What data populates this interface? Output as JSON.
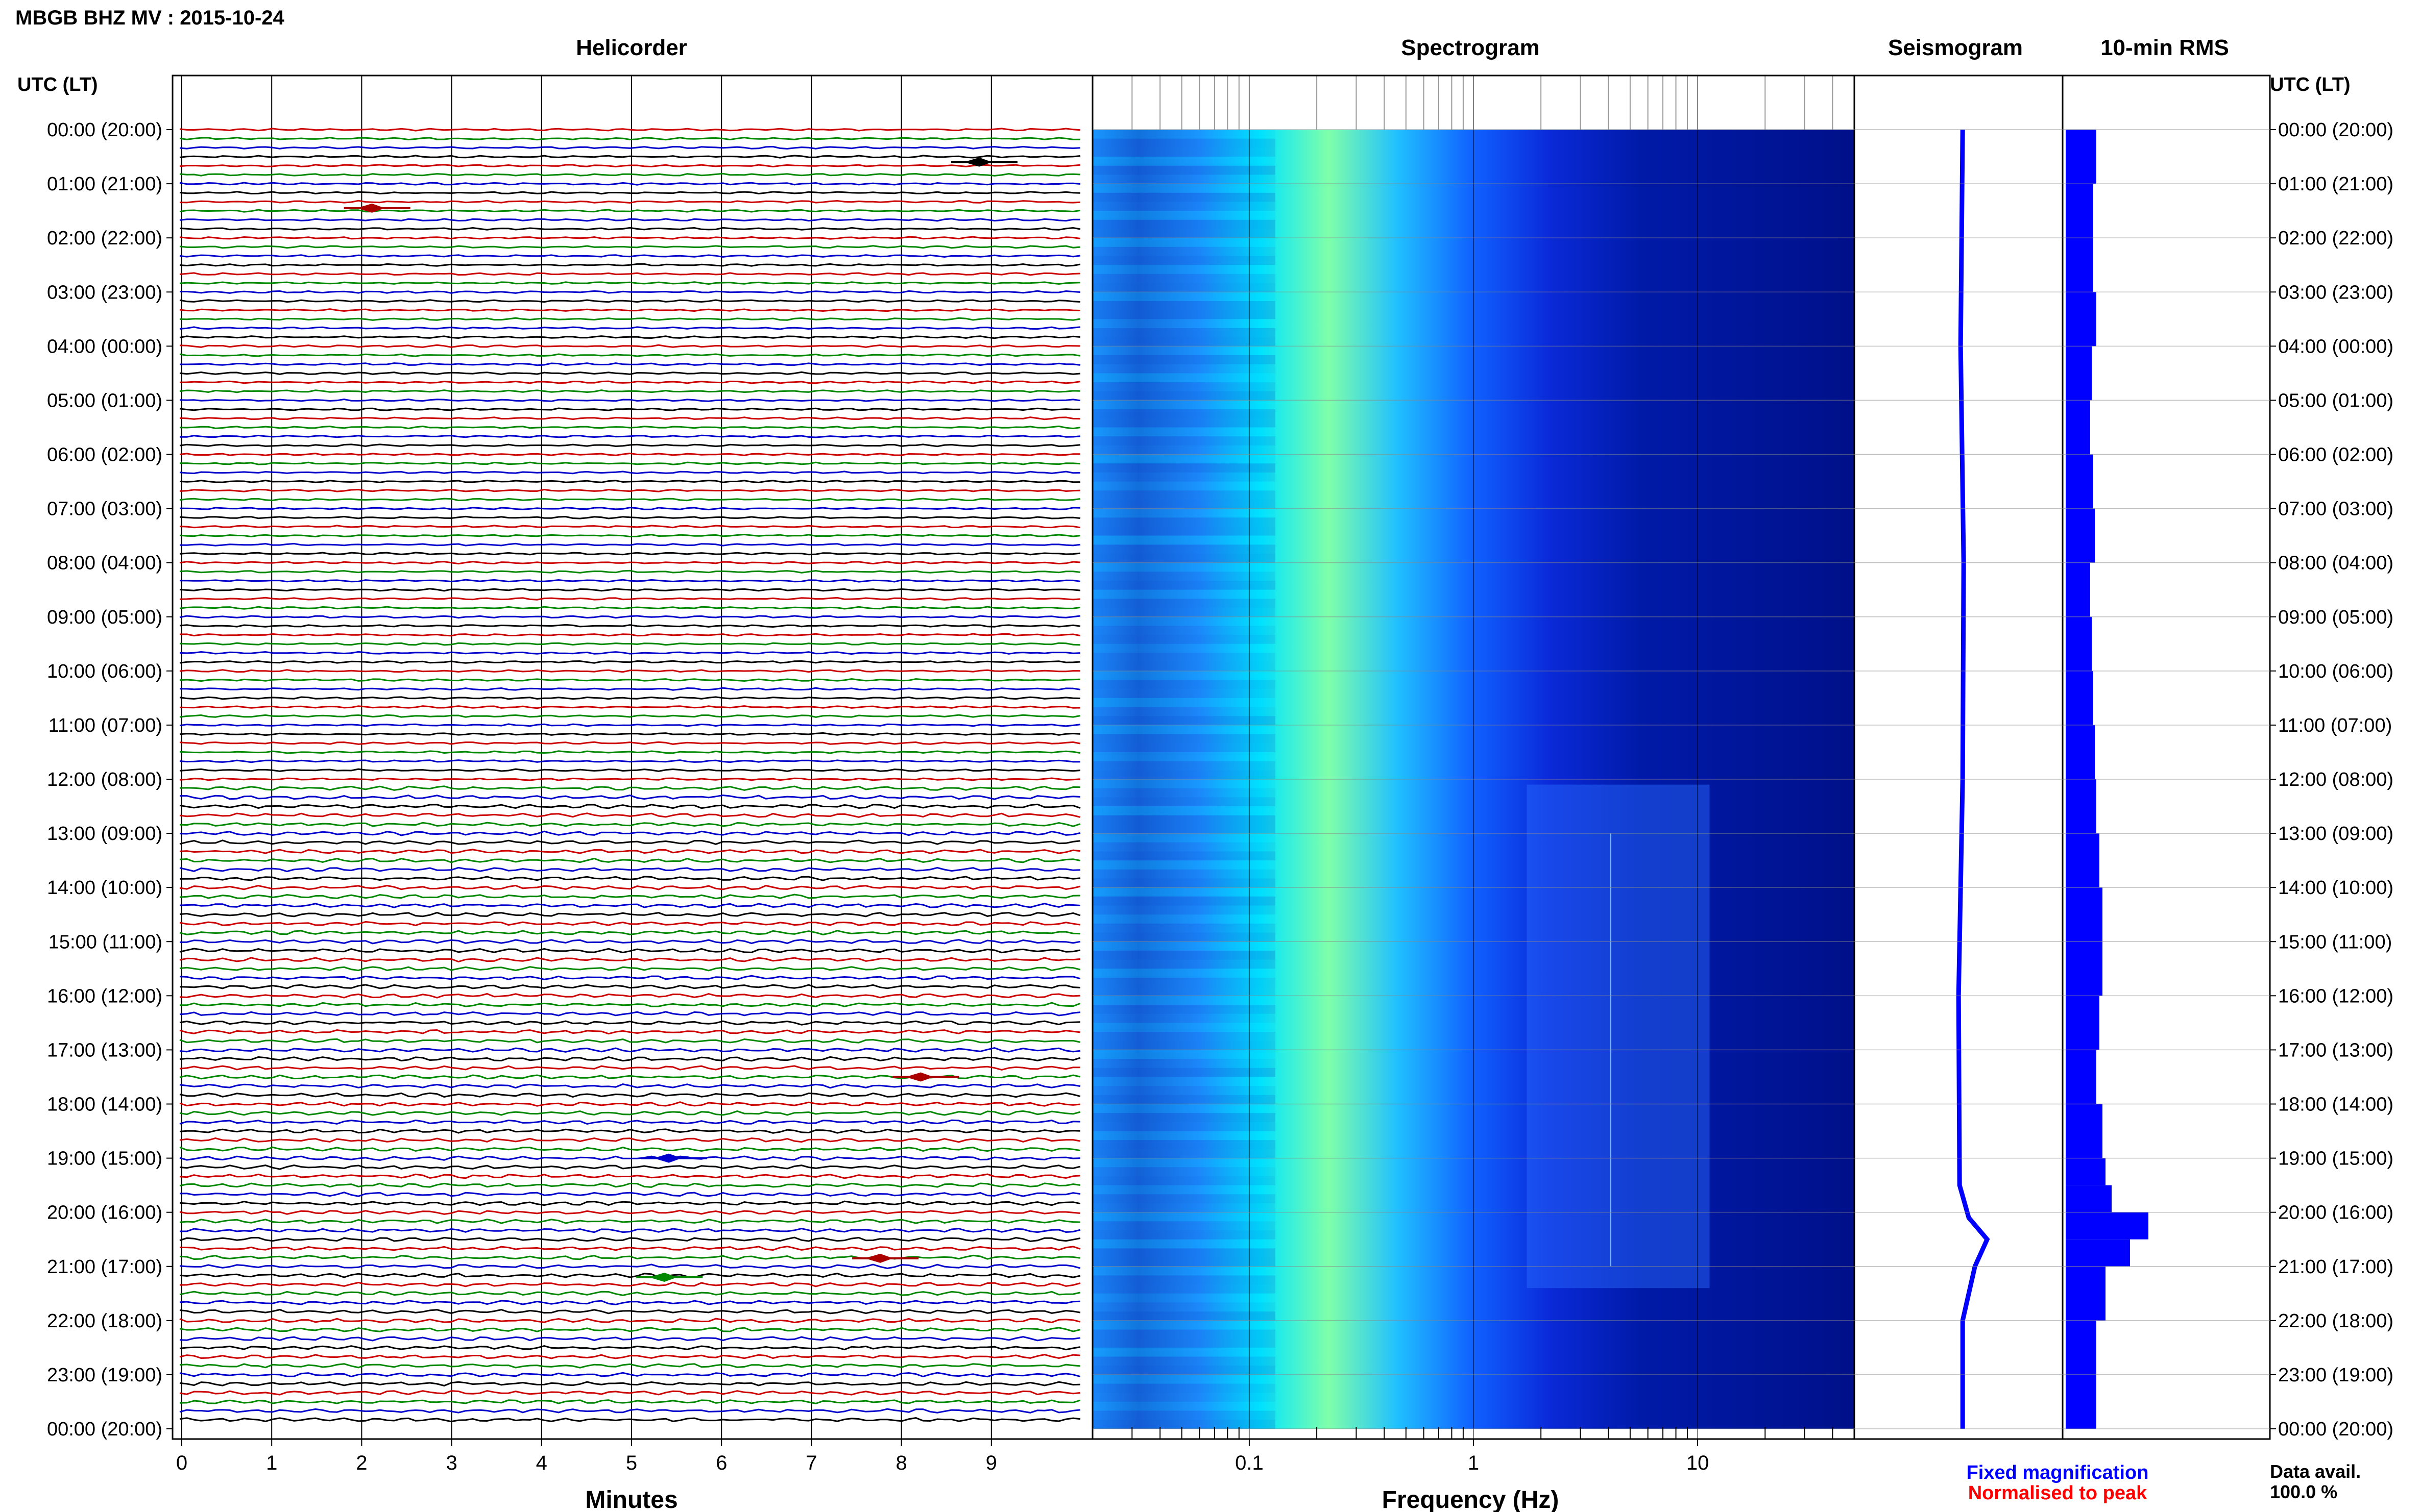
{
  "title": "MBGB BHZ MV : 2015-10-24",
  "panels": {
    "helicorder": "Helicorder",
    "spectrogram": "Spectrogram",
    "seismogram": "Seismogram",
    "rms": "10-min RMS"
  },
  "axis_labels": {
    "left_header": "UTC (LT)",
    "right_header": "UTC (LT)",
    "helicorder_x": "Minutes",
    "spectrogram_x": "Frequency (Hz)"
  },
  "legend": {
    "fixed": "Fixed magnification",
    "normalised": "Normalised to peak",
    "fixed_color": "#0000ff",
    "normalised_color": "#ff0000"
  },
  "data_avail": {
    "label": "Data avail.",
    "value": "100.0 %"
  },
  "time_labels": [
    "00:00 (20:00)",
    "01:00 (21:00)",
    "02:00 (22:00)",
    "03:00 (23:00)",
    "04:00 (00:00)",
    "05:00 (01:00)",
    "06:00 (02:00)",
    "07:00 (03:00)",
    "08:00 (04:00)",
    "09:00 (05:00)",
    "10:00 (06:00)",
    "11:00 (07:00)",
    "12:00 (08:00)",
    "13:00 (09:00)",
    "14:00 (10:00)",
    "15:00 (11:00)",
    "16:00 (12:00)",
    "17:00 (13:00)",
    "18:00 (14:00)",
    "19:00 (15:00)",
    "20:00 (16:00)",
    "21:00 (17:00)",
    "22:00 (18:00)",
    "23:00 (19:00)",
    "00:00 (20:00)"
  ],
  "chart_data": [
    {
      "type": "line",
      "panel": "Helicorder",
      "xlabel": "Minutes",
      "xlim": [
        0,
        10
      ],
      "x_ticks": [
        "0",
        "1",
        "2",
        "3",
        "4",
        "5",
        "6",
        "7",
        "8",
        "9"
      ],
      "rows": 144,
      "trace_colors": [
        "#cc0000",
        "#008800",
        "#0000cc",
        "#000000"
      ],
      "events": [
        {
          "hour": 0.6,
          "minute": 8.95,
          "color": "#000000"
        },
        {
          "hour": 1.45,
          "minute": 2.2,
          "color": "#aa0000"
        },
        {
          "hour": 17.5,
          "minute": 8.3,
          "color": "#aa0000"
        },
        {
          "hour": 19.0,
          "minute": 5.5,
          "color": "#0000cc"
        },
        {
          "hour": 20.85,
          "minute": 7.85,
          "color": "#aa0000"
        },
        {
          "hour": 21.2,
          "minute": 5.45,
          "color": "#008800"
        }
      ]
    },
    {
      "type": "heatmap",
      "panel": "Spectrogram",
      "xlabel": "Frequency (Hz)",
      "x_scale": "log",
      "xlim": [
        0.02,
        50
      ],
      "x_ticks": [
        "0.1",
        "1",
        "10"
      ],
      "colormap": [
        "#00008b",
        "#0000ff",
        "#1e90ff",
        "#00ffff",
        "#7fff7f"
      ]
    },
    {
      "type": "line",
      "panel": "Seismogram",
      "description_points_hour": [
        0,
        4,
        8,
        12,
        16,
        19.5,
        20.1,
        20.5,
        21,
        22,
        24
      ],
      "offset": [
        0,
        -0.1,
        0.05,
        0,
        -0.2,
        -0.15,
        0.3,
        1.2,
        0.6,
        0,
        0
      ]
    },
    {
      "type": "bar",
      "panel": "10-min RMS",
      "orientation": "horizontal",
      "hours": [
        0,
        1,
        2,
        3,
        4,
        5,
        6,
        7,
        8,
        9,
        10,
        11,
        12,
        13,
        14,
        15,
        16,
        17,
        18,
        19,
        19.5,
        20,
        20.5,
        21,
        22,
        23
      ],
      "values": [
        1.0,
        0.9,
        0.9,
        1.0,
        0.85,
        0.8,
        0.9,
        0.95,
        0.8,
        0.85,
        0.9,
        0.95,
        1.0,
        1.1,
        1.2,
        1.2,
        1.1,
        1.0,
        1.2,
        1.3,
        1.5,
        2.7,
        2.1,
        1.3,
        1.0,
        1.0
      ]
    }
  ]
}
